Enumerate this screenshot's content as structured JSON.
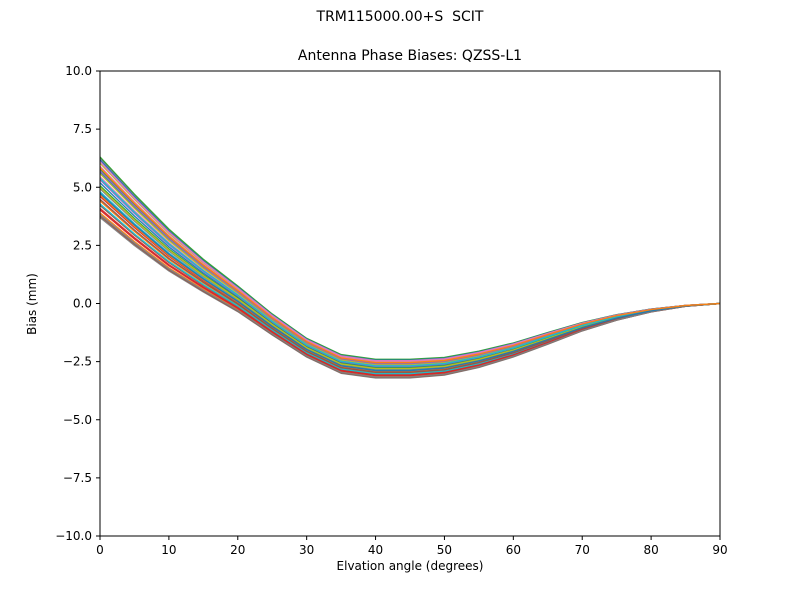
{
  "suptitle": "TRM115000.00+S  SCIT",
  "chart_data": {
    "type": "line",
    "title": "Antenna Phase Biases: QZSS-L1",
    "xlabel": "Elvation angle (degrees)",
    "ylabel": "Bias (mm)",
    "xlim": [
      0,
      90
    ],
    "ylim": [
      -10.0,
      10.0
    ],
    "grid": false,
    "legend": "none",
    "frame_color": "#000000",
    "xticks": [
      0,
      10,
      20,
      30,
      40,
      50,
      60,
      70,
      80,
      90
    ],
    "xtick_labels": [
      "0",
      "10",
      "20",
      "30",
      "40",
      "50",
      "60",
      "70",
      "80",
      "90"
    ],
    "yticks": [
      10.0,
      7.5,
      5.0,
      2.5,
      0.0,
      -2.5,
      -5.0,
      -7.5,
      -10.0
    ],
    "ytick_labels": [
      "10.0",
      "7.5",
      "5.0",
      "2.5",
      "0.0",
      "−2.5",
      "−5.0",
      "−7.5",
      "−10.0"
    ],
    "description": "Ensemble of many antenna phase-bias curves vs elevation angle; band starts at +3.7 to +6.3 mm at 0 deg, crosses zero near 20-25 deg, dips to -2.4 to -3.2 mm near 35-45 deg, and converges to 0.0 mm at 90 deg.",
    "x": [
      0,
      5,
      10,
      15,
      20,
      25,
      30,
      35,
      40,
      45,
      50,
      55,
      60,
      65,
      70,
      75,
      80,
      85,
      90
    ],
    "ensemble": {
      "n_curves_approx": 40,
      "mean": [
        5.0,
        3.6,
        2.3,
        1.2,
        0.2,
        -0.9,
        -1.9,
        -2.6,
        -2.8,
        -2.8,
        -2.7,
        -2.4,
        -2.0,
        -1.5,
        -1.0,
        -0.6,
        -0.3,
        -0.1,
        0.0
      ],
      "spread": [
        1.3,
        1.1,
        0.9,
        0.7,
        0.55,
        0.45,
        0.4,
        0.4,
        0.4,
        0.4,
        0.38,
        0.35,
        0.3,
        0.25,
        0.18,
        0.12,
        0.06,
        0.02,
        0.0
      ],
      "envelope_top": [
        6.3,
        4.7,
        3.2,
        1.9,
        0.75,
        -0.45,
        -1.5,
        -2.2,
        -2.4,
        -2.4,
        -2.32,
        -2.05,
        -1.7,
        -1.25,
        -0.82,
        -0.48,
        -0.24,
        -0.08,
        0.0
      ],
      "envelope_bottom": [
        3.7,
        2.5,
        1.4,
        0.5,
        -0.35,
        -1.35,
        -2.3,
        -3.0,
        -3.2,
        -3.2,
        -3.08,
        -2.75,
        -2.3,
        -1.75,
        -1.18,
        -0.72,
        -0.36,
        -0.12,
        0.0
      ]
    },
    "series_offsets": [
      0.15,
      -0.85,
      0.6,
      -0.3,
      0.95,
      -0.6,
      0.35,
      -1.0,
      0.8,
      -0.15,
      0.5,
      -0.45,
      1.0,
      -0.75,
      0.25,
      -0.95,
      0.7,
      -0.05,
      0.45,
      -0.55,
      0.9,
      -0.25,
      0.05,
      -0.7,
      0.55,
      -0.4,
      0.85,
      -0.9,
      0.0,
      0.3,
      -0.2,
      0.65
    ],
    "colors": [
      "#1f77b4",
      "#ff7f0e",
      "#2ca02c",
      "#d62728",
      "#9467bd",
      "#8c564b",
      "#e377c2",
      "#7f7f7f",
      "#bcbd22",
      "#17becf"
    ]
  }
}
